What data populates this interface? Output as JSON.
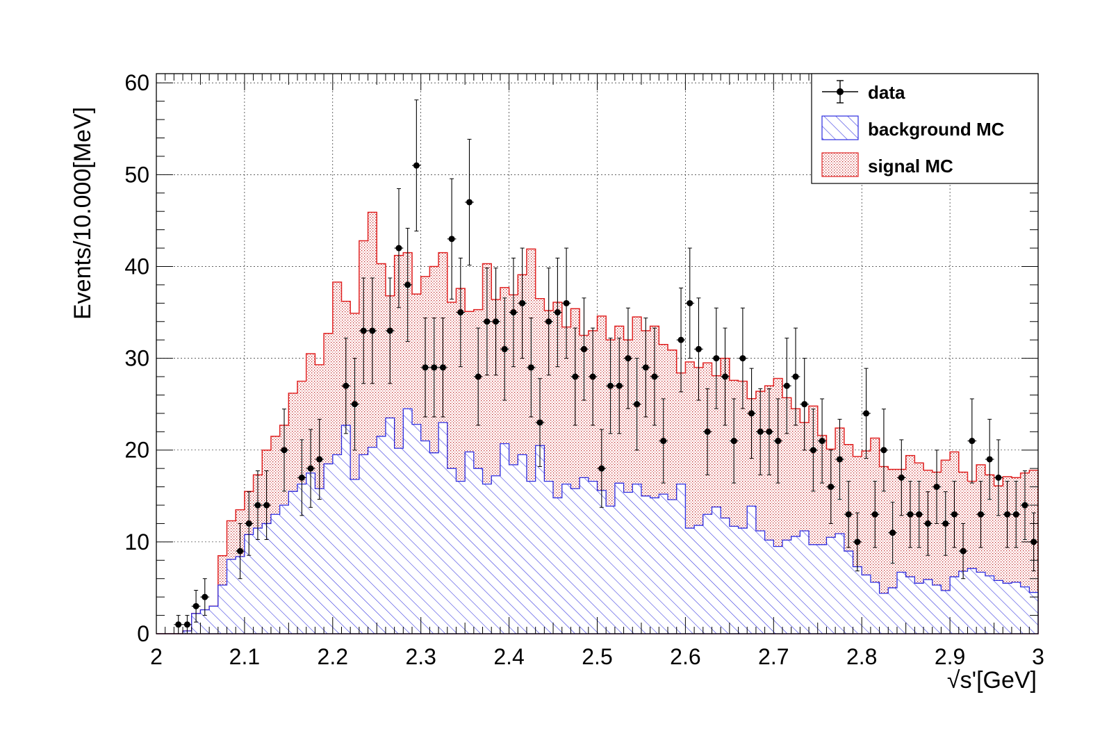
{
  "chart_data": {
    "type": "histogram",
    "xlabel": "√s'[GeV]",
    "ylabel": "Events/10.000[MeV]",
    "xlim": [
      2.0,
      3.0
    ],
    "ylim": [
      0,
      61
    ],
    "grid": true,
    "legend_position": "top-right",
    "x_ticks": [
      2,
      2.1,
      2.2,
      2.3,
      2.4,
      2.5,
      2.6,
      2.7,
      2.8,
      2.9,
      3
    ],
    "x_tick_labels": [
      "2",
      "2.1",
      "2.2",
      "2.3",
      "2.4",
      "2.5",
      "2.6",
      "2.7",
      "2.8",
      "2.9",
      "3"
    ],
    "y_ticks": [
      0,
      10,
      20,
      30,
      40,
      50,
      60
    ],
    "y_tick_labels": [
      "0",
      "10",
      "20",
      "30",
      "40",
      "50",
      "60"
    ],
    "colors": {
      "background": "#2c2ce0",
      "signal": "#e02020",
      "data": "#000000"
    },
    "bin_width": 0.01,
    "bin_start": 2.0,
    "series": [
      {
        "name": "background MC",
        "style": "hatched",
        "values": [
          0,
          0,
          0,
          0.3,
          2.2,
          2.6,
          3,
          5.3,
          8.1,
          8.4,
          10.8,
          11.5,
          12,
          13,
          14,
          15.5,
          16.3,
          17.5,
          15.8,
          18.5,
          19.5,
          22.7,
          16.8,
          19.5,
          20.3,
          21.5,
          23.5,
          20.2,
          24.5,
          22.8,
          21,
          19.7,
          23,
          18,
          16.6,
          19.8,
          18,
          16.3,
          17.2,
          20.7,
          18.4,
          19.5,
          16.6,
          20.5,
          16.6,
          14.8,
          16.3,
          15.8,
          17.0,
          16.6,
          15.6,
          13.9,
          16.4,
          15.4,
          16.3,
          15.0,
          14.8,
          15.2,
          14.6,
          16.3,
          11.5,
          11.8,
          13.0,
          13.8,
          12.6,
          11.7,
          11.5,
          13.9,
          11.2,
          10.2,
          9.5,
          10.2,
          10.6,
          11.2,
          9.7,
          9.7,
          10.5,
          10.9,
          9.0,
          7.3,
          6.4,
          5.6,
          4.4,
          5.0,
          6.7,
          6.2,
          5.5,
          5.9,
          5.3,
          4.7,
          6.2,
          6.8,
          7.1,
          6.7,
          6.3,
          5.8,
          5.5,
          5.6,
          5.1,
          4.5,
          4.9,
          5.4,
          6.1,
          6.5,
          7.0,
          5.8,
          5.7,
          5.6,
          7.3,
          6.9,
          6.6,
          6.1,
          5.5,
          4.9,
          5.8,
          5.5,
          5.2,
          6.8,
          7.8,
          6.8,
          6.3,
          6.1,
          6.8,
          6.6,
          6.1,
          6.1,
          5.8,
          4.5,
          5.2,
          5.3,
          5.9,
          5.0,
          5.0,
          4.8,
          4.7,
          5.2,
          5.1,
          5.0,
          5.6,
          5.5,
          6.0,
          6.7,
          6.6,
          5.0,
          4.5,
          5.0,
          5.5,
          5.6,
          6.5,
          6.8,
          6.0,
          5.6,
          5.2,
          5.2,
          6.0,
          6.4,
          6.1,
          5.3,
          4.7,
          5.0,
          4.8,
          5.1,
          4.6,
          5.3,
          6.0,
          5.7,
          5.6,
          5.2,
          4.3,
          5.3
        ]
      },
      {
        "name": "signal MC",
        "style": "dotted-fill",
        "values": [
          0,
          0,
          0,
          0.3,
          2.2,
          2.6,
          3,
          8.5,
          12.3,
          13.5,
          15.5,
          17.3,
          20,
          21.5,
          22.7,
          26.2,
          27.5,
          30.5,
          29.3,
          32.7,
          38.3,
          36.2,
          34.9,
          42.8,
          45.9,
          40.3,
          36.8,
          41.2,
          41.5,
          37.0,
          38.9,
          40.0,
          41.5,
          36.1,
          37.6,
          35.1,
          35.3,
          40.3,
          36.4,
          37.7,
          36.9,
          39.1,
          41.9,
          36.5,
          35.2,
          36.1,
          33.4,
          35.4,
          32.5,
          33.0,
          34.6,
          32.0,
          33.5,
          32.0,
          34.5,
          33.0,
          33.5,
          31.5,
          30.9,
          28.4,
          29.6,
          29.0,
          29.5,
          28.1,
          30.0,
          27.6,
          27.5,
          25.6,
          26.4,
          27.0,
          27.8,
          25.7,
          24.5,
          23.0,
          24.8,
          21.6,
          20.1,
          22.4,
          20.6,
          19.3,
          19.9,
          21.3,
          18.2,
          17.9,
          17.9,
          19.4,
          18.6,
          17.8,
          17.6,
          18.9,
          19.8,
          17.6,
          16.6,
          18.4,
          17.3,
          16.1,
          17.1,
          17.0,
          17.5,
          17.8,
          16.3,
          15.1,
          15.6,
          15.4,
          14.4,
          15.3,
          14.7,
          13.8,
          14.6,
          13.7,
          14.1,
          14.3,
          14.0,
          13.9,
          14.1,
          13.8,
          14.0,
          13.9,
          14.1,
          13.7,
          14.0,
          13.8,
          14.1,
          14.0,
          13.9,
          14.0,
          13.8,
          14.0,
          14.0,
          13.9,
          14.1,
          13.8,
          14.0,
          13.9,
          14.0,
          14.1,
          13.8,
          14.0,
          13.9,
          14.0,
          14.1,
          14.0,
          13.8,
          14.0,
          13.9,
          14.1,
          14.0,
          13.9,
          14.0,
          14.0,
          13.8,
          14.1,
          13.9,
          14.0,
          14.0,
          13.9,
          14.1,
          13.8,
          14.0,
          14.0,
          13.9,
          14.1,
          14.0,
          13.9,
          14.0,
          14.0
        ]
      }
    ],
    "data_points": {
      "name": "data",
      "x": [
        2.025,
        2.035,
        2.045,
        2.055,
        2.095,
        2.105,
        2.115,
        2.125,
        2.145,
        2.165,
        2.175,
        2.185,
        2.215,
        2.225,
        2.235,
        2.245,
        2.265,
        2.275,
        2.285,
        2.295,
        2.305,
        2.315,
        2.325,
        2.335,
        2.345,
        2.355,
        2.365,
        2.375,
        2.385,
        2.395,
        2.405,
        2.415,
        2.425,
        2.435,
        2.445,
        2.455,
        2.465,
        2.475,
        2.485,
        2.495,
        2.505,
        2.515,
        2.525,
        2.535,
        2.545,
        2.555,
        2.565,
        2.575,
        2.595,
        2.605,
        2.615,
        2.625,
        2.635,
        2.645,
        2.655,
        2.665,
        2.675,
        2.685,
        2.695,
        2.705,
        2.715,
        2.725,
        2.735,
        2.745,
        2.755,
        2.765,
        2.775,
        2.785,
        2.795,
        2.805,
        2.815,
        2.825,
        2.835,
        2.845,
        2.855,
        2.865,
        2.875,
        2.885,
        2.895,
        2.905,
        2.915,
        2.925,
        2.935,
        2.945,
        2.955,
        2.965,
        2.975,
        2.985,
        2.995
      ],
      "y": [
        1,
        1,
        3,
        4,
        9,
        12,
        14,
        14,
        20,
        17,
        18,
        19,
        27,
        25,
        33,
        33,
        33,
        42,
        38,
        51,
        29,
        29,
        29,
        43,
        35,
        47,
        28,
        34,
        34,
        31,
        35,
        36,
        29,
        23,
        34,
        35,
        36,
        28,
        31,
        28,
        18,
        27,
        27,
        30,
        25,
        29,
        28,
        21,
        32,
        36,
        31,
        22,
        30,
        28,
        21,
        30,
        24,
        22,
        22,
        21,
        27,
        28,
        25,
        20,
        21,
        16,
        19,
        13,
        10,
        24,
        13,
        20,
        11,
        17,
        13,
        13,
        12,
        16,
        12,
        13,
        9,
        21,
        13,
        19,
        17,
        13,
        13,
        14,
        10
      ]
    }
  },
  "legend": {
    "items": [
      {
        "label": "data"
      },
      {
        "label": "background MC"
      },
      {
        "label": "signal MC"
      }
    ]
  }
}
